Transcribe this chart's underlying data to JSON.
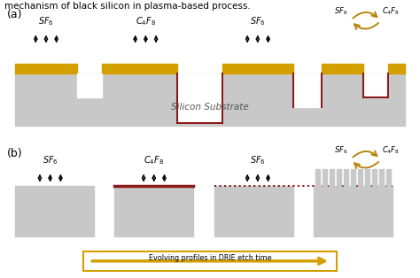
{
  "title_text": "mechanism of black silicon in plasma-based process.",
  "bg_color": "#ffffff",
  "silicon_color": "#c8c8c8",
  "mask_color": "#d4a000",
  "passivation_color": "#8b1a1a",
  "arrow_color": "#000000",
  "cycle_arrow_color": "#b8860b",
  "substrate_label": "Silicon Substrate",
  "evolving_label": "Evolving profiles in DRIE etch time",
  "evolving_box_color": "#d4a000",
  "panel_a_label": "(a)",
  "panel_b_label": "(b)"
}
